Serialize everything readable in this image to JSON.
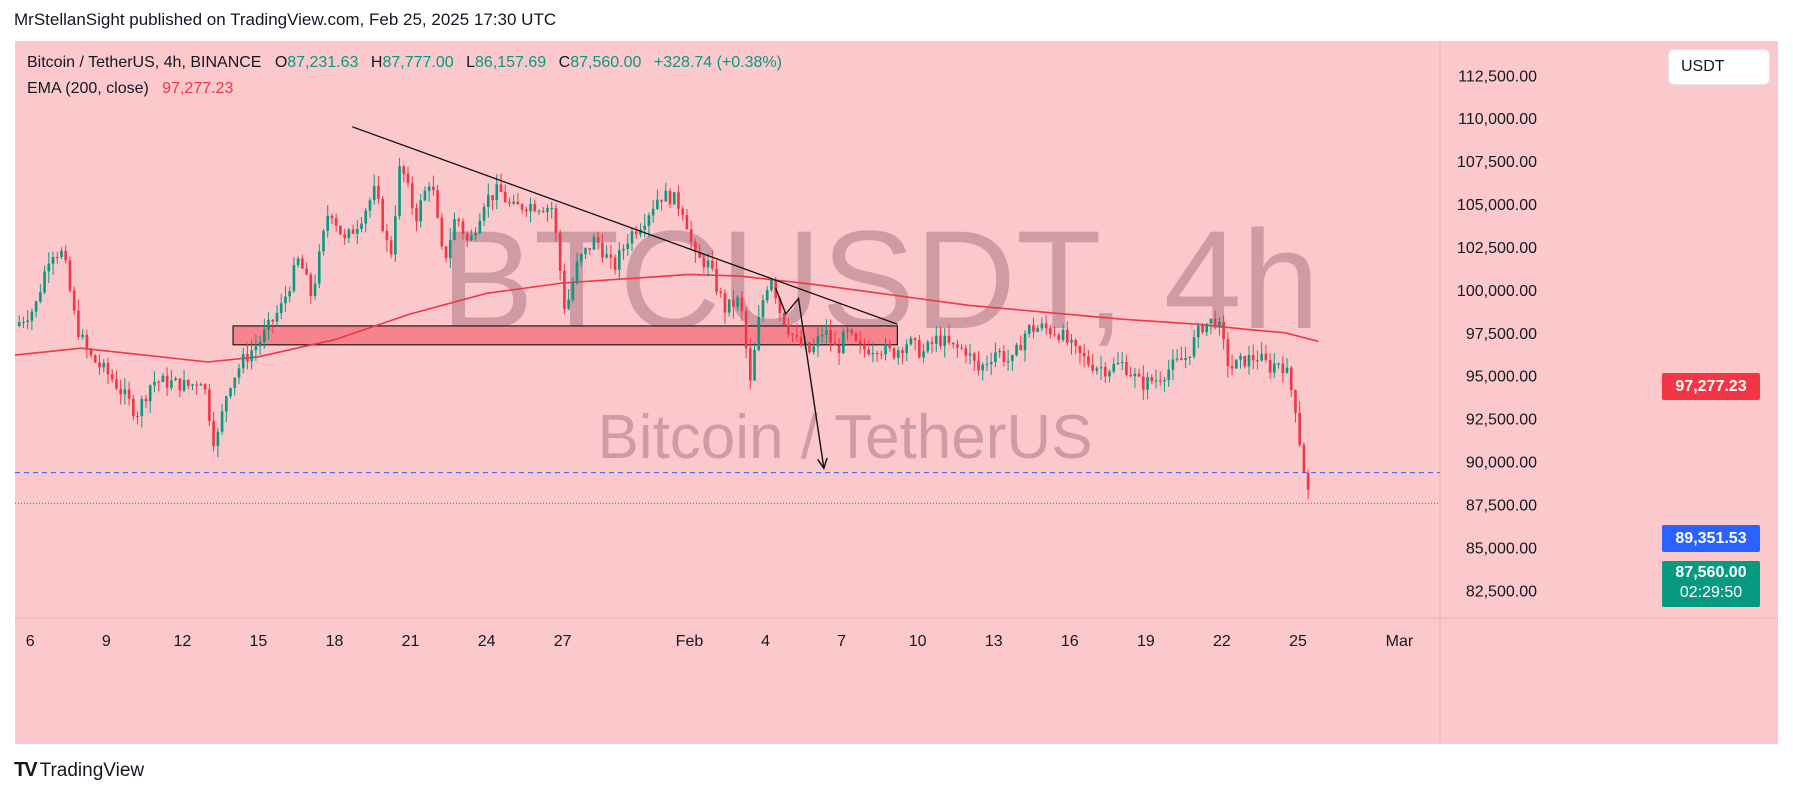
{
  "header": {
    "publisher_text": "MrStellanSight published on TradingView.com, Feb 25, 2025 17:30 UTC"
  },
  "legend": {
    "symbol": "Bitcoin / TetherUS, 4h, BINANCE",
    "o_label": "O",
    "o_value": "87,231.63",
    "h_label": "H",
    "h_value": "87,777.00",
    "l_label": "L",
    "l_value": "86,157.69",
    "c_label": "C",
    "c_value": "87,560.00",
    "change": "+328.74 (+0.38%)",
    "ema_label": "EMA (200, close)",
    "ema_value": "97,277.23"
  },
  "currency_button": "USDT",
  "watermark": {
    "line1": "BTCUSDT, 4h",
    "line2": "Bitcoin / TetherUS"
  },
  "price_tags": {
    "ema": "97,277.23",
    "level": "89,351.53",
    "last": "87,560.00",
    "countdown": "02:29:50"
  },
  "footer": {
    "brand_mark": "TV",
    "brand": "TradingView"
  },
  "colors": {
    "up": "#089981",
    "down": "#f23645",
    "ema": "#f23645",
    "level": "#2962ff",
    "zone": "#f7838d",
    "bg": "#fbc9cc"
  },
  "chart_data": {
    "type": "candlestick",
    "title": "Bitcoin / TetherUS, 4h, BINANCE",
    "x_ticks": [
      {
        "label": "6",
        "day": 6
      },
      {
        "label": "9",
        "day": 9
      },
      {
        "label": "12",
        "day": 12
      },
      {
        "label": "15",
        "day": 15
      },
      {
        "label": "18",
        "day": 18
      },
      {
        "label": "21",
        "day": 21
      },
      {
        "label": "24",
        "day": 24
      },
      {
        "label": "27",
        "day": 27
      },
      {
        "label": "Feb",
        "day": 32
      },
      {
        "label": "4",
        "day": 35
      },
      {
        "label": "7",
        "day": 38
      },
      {
        "label": "10",
        "day": 41
      },
      {
        "label": "13",
        "day": 44
      },
      {
        "label": "16",
        "day": 47
      },
      {
        "label": "19",
        "day": 50
      },
      {
        "label": "22",
        "day": 53
      },
      {
        "label": "25",
        "day": 56
      },
      {
        "label": "Mar",
        "day": 60
      }
    ],
    "y_ticks": [
      "82,500.00",
      "85,000.00",
      "87,500.00",
      "90,000.00",
      "92,500.00",
      "95,000.00",
      "97,500.00",
      "100,000.00",
      "102,500.00",
      "105,000.00",
      "107,500.00",
      "110,000.00",
      "112,500.00"
    ],
    "y_tick_values": [
      82500,
      85000,
      87500,
      90000,
      92500,
      95000,
      97500,
      100000,
      102500,
      105000,
      107500,
      110000,
      112500
    ],
    "ylim": [
      81000,
      114500
    ],
    "xlim": [
      5.4,
      61.6
    ],
    "price_path": [
      [
        5.4,
        97900
      ],
      [
        6.2,
        99000
      ],
      [
        6.8,
        102300
      ],
      [
        7.3,
        102100
      ],
      [
        7.8,
        98000
      ],
      [
        8.3,
        96200
      ],
      [
        9.2,
        94900
      ],
      [
        10.2,
        92800
      ],
      [
        10.8,
        94700
      ],
      [
        11.5,
        94600
      ],
      [
        12.3,
        94400
      ],
      [
        12.8,
        94900
      ],
      [
        13.3,
        90800
      ],
      [
        13.8,
        94400
      ],
      [
        14.4,
        95900
      ],
      [
        15.1,
        97100
      ],
      [
        15.9,
        99000
      ],
      [
        16.6,
        101800
      ],
      [
        17.1,
        99600
      ],
      [
        17.8,
        104900
      ],
      [
        18.4,
        102800
      ],
      [
        19.0,
        104100
      ],
      [
        19.6,
        105800
      ],
      [
        20.2,
        101800
      ],
      [
        20.6,
        107400
      ],
      [
        21.2,
        104200
      ],
      [
        21.8,
        106600
      ],
      [
        22.3,
        101500
      ],
      [
        22.8,
        104400
      ],
      [
        23.3,
        102600
      ],
      [
        23.9,
        105200
      ],
      [
        24.5,
        105800
      ],
      [
        25.0,
        104700
      ],
      [
        25.6,
        105000
      ],
      [
        26.2,
        104900
      ],
      [
        26.6,
        104800
      ],
      [
        27.1,
        98700
      ],
      [
        27.6,
        101600
      ],
      [
        28.3,
        103000
      ],
      [
        29.0,
        101200
      ],
      [
        29.6,
        103100
      ],
      [
        30.2,
        104100
      ],
      [
        30.8,
        105500
      ],
      [
        31.3,
        105400
      ],
      [
        31.8,
        104600
      ],
      [
        32.2,
        101800
      ],
      [
        32.7,
        101600
      ],
      [
        33.4,
        98900
      ],
      [
        34.0,
        99400
      ],
      [
        34.4,
        94500
      ],
      [
        34.8,
        98900
      ],
      [
        35.2,
        101000
      ],
      [
        35.6,
        98600
      ],
      [
        36.2,
        97000
      ],
      [
        36.8,
        96300
      ],
      [
        37.3,
        97700
      ],
      [
        37.8,
        96400
      ],
      [
        38.2,
        97500
      ],
      [
        38.7,
        96500
      ],
      [
        39.4,
        96700
      ],
      [
        40.0,
        96300
      ],
      [
        40.6,
        97000
      ],
      [
        41.2,
        96300
      ],
      [
        41.8,
        97200
      ],
      [
        42.4,
        96600
      ],
      [
        42.9,
        96500
      ],
      [
        43.4,
        95300
      ],
      [
        44.1,
        96500
      ],
      [
        44.7,
        95700
      ],
      [
        45.3,
        97700
      ],
      [
        45.9,
        97800
      ],
      [
        46.6,
        97500
      ],
      [
        47.2,
        96400
      ],
      [
        47.8,
        95700
      ],
      [
        48.4,
        95400
      ],
      [
        49.1,
        95700
      ],
      [
        49.8,
        94500
      ],
      [
        50.4,
        94800
      ],
      [
        51.1,
        95600
      ],
      [
        51.6,
        96100
      ],
      [
        52.2,
        97900
      ],
      [
        52.8,
        98300
      ],
      [
        53.3,
        95400
      ],
      [
        53.9,
        95900
      ],
      [
        54.4,
        96100
      ],
      [
        54.9,
        95500
      ],
      [
        55.3,
        95900
      ],
      [
        55.6,
        95000
      ],
      [
        55.9,
        93200
      ],
      [
        56.1,
        90800
      ],
      [
        56.35,
        88400
      ],
      [
        56.55,
        87560
      ]
    ],
    "ema200": [
      [
        5.4,
        96200
      ],
      [
        8,
        96600
      ],
      [
        13,
        95800
      ],
      [
        15,
        96100
      ],
      [
        18,
        97100
      ],
      [
        21,
        98600
      ],
      [
        24,
        99800
      ],
      [
        27,
        100400
      ],
      [
        30,
        100700
      ],
      [
        32,
        100900
      ],
      [
        34,
        100800
      ],
      [
        37,
        100300
      ],
      [
        40,
        99700
      ],
      [
        43,
        99100
      ],
      [
        46,
        98700
      ],
      [
        49,
        98300
      ],
      [
        52,
        98000
      ],
      [
        54,
        97700
      ],
      [
        55.5,
        97500
      ],
      [
        56.8,
        97000
      ]
    ],
    "zone": {
      "x_start": 14.0,
      "x_end": 40.2,
      "y_low": 96800,
      "y_high": 97900
    },
    "trendline": [
      [
        18.7,
        109500
      ],
      [
        40.2,
        98000
      ]
    ],
    "projection": [
      [
        35.4,
        100100
      ],
      [
        35.8,
        98600
      ],
      [
        36.3,
        99500
      ],
      [
        37.3,
        89600
      ]
    ],
    "level_line": 89351.53,
    "last_price": 87560,
    "ema_value": 97277.23
  }
}
